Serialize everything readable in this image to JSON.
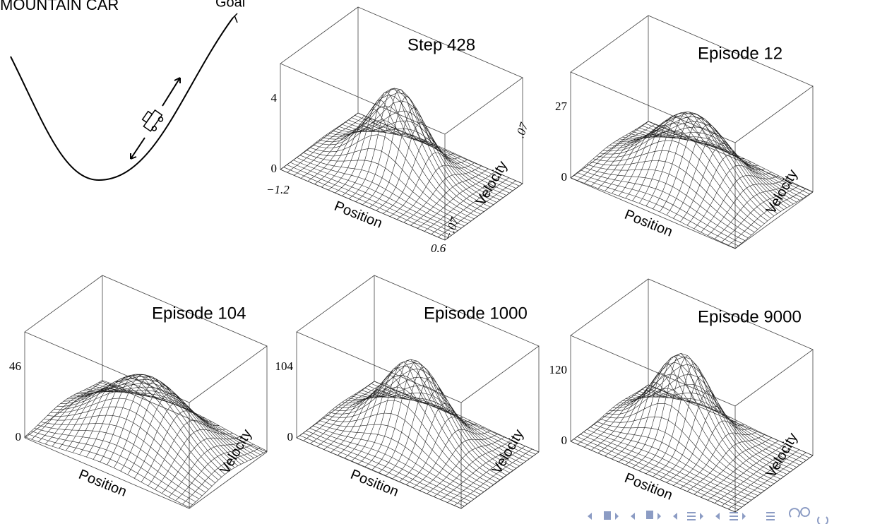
{
  "figure": {
    "title": "MOUNTAIN CAR",
    "goal": "Goal"
  },
  "panels": [
    {
      "title": "Step 428",
      "z_max": "4",
      "z_min": "0",
      "x_label": "Position",
      "y_label": "Velocity",
      "x_min": "−1.2",
      "x_max": "0.6",
      "y_min": "−.07",
      "y_max": ".07"
    },
    {
      "title": "Episode 12",
      "z_max": "27",
      "z_min": "0",
      "x_label": "Position",
      "y_label": "Velocity"
    },
    {
      "title": "Episode 104",
      "z_max": "46",
      "z_min": "0",
      "x_label": "Position",
      "y_label": "Velocity"
    },
    {
      "title": "Episode 1000",
      "z_max": "104",
      "z_min": "0",
      "x_label": "Position",
      "y_label": "Velocity"
    },
    {
      "title": "Episode 9000",
      "z_max": "120",
      "z_min": "0",
      "x_label": "Position",
      "y_label": "Velocity"
    }
  ]
}
